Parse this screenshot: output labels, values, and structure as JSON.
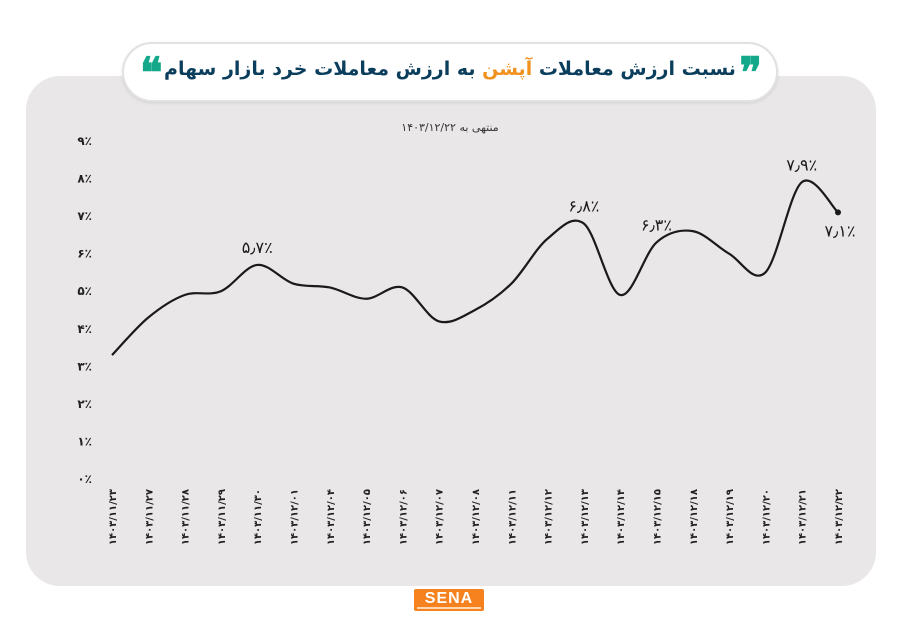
{
  "header": {
    "title_part1": "نسبت ارزش معاملات",
    "title_part2": "آپشن",
    "title_part3": "به ارزش معاملات خرد بازار سهام",
    "quote_right": "❞",
    "quote_left": "❝",
    "accent_color": "#13a88a",
    "highlight_color": "#f19220"
  },
  "subtitle": "منتهی به ۱۴۰۳/۱۲/۲۲",
  "logo": {
    "text": "SENA",
    "color": "#f5821f"
  },
  "chart_data": {
    "type": "line",
    "title": "نسبت ارزش معاملات آپشن به ارزش معاملات خرد بازار سهام",
    "ylim": [
      0,
      9
    ],
    "yticks": [
      "۰٪",
      "۱٪",
      "۲٪",
      "۳٪",
      "۴٪",
      "۵٪",
      "۶٪",
      "۷٪",
      "۸٪",
      "۹٪"
    ],
    "categories": [
      "۱۴۰۳/۱۱/۲۳",
      "۱۴۰۳/۱۱/۲۷",
      "۱۴۰۳/۱۱/۲۸",
      "۱۴۰۳/۱۱/۲۹",
      "۱۴۰۳/۱۱/۳۰",
      "۱۴۰۳/۱۲/۰۱",
      "۱۴۰۳/۱۲/۰۴",
      "۱۴۰۳/۱۲/۰۵",
      "۱۴۰۳/۱۲/۰۶",
      "۱۴۰۳/۱۲/۰۷",
      "۱۴۰۳/۱۲/۰۸",
      "۱۴۰۳/۱۲/۱۱",
      "۱۴۰۳/۱۲/۱۲",
      "۱۴۰۳/۱۲/۱۳",
      "۱۴۰۳/۱۲/۱۴",
      "۱۴۰۳/۱۲/۱۵",
      "۱۴۰۳/۱۲/۱۸",
      "۱۴۰۳/۱۲/۱۹",
      "۱۴۰۳/۱۲/۲۰",
      "۱۴۰۳/۱۲/۲۱",
      "۱۴۰۳/۱۲/۲۲"
    ],
    "values": [
      3.3,
      4.3,
      4.9,
      5.0,
      5.7,
      5.2,
      5.1,
      4.8,
      5.1,
      4.2,
      4.5,
      5.2,
      6.4,
      6.8,
      4.9,
      6.3,
      6.6,
      6.0,
      5.5,
      7.9,
      7.1
    ],
    "data_labels": [
      {
        "index": 4,
        "text": "۵٫۷٪"
      },
      {
        "index": 13,
        "text": "۶٫۸٪"
      },
      {
        "index": 15,
        "text": "۶٫۳٪"
      },
      {
        "index": 19,
        "text": "۷٫۹٪"
      },
      {
        "index": 20,
        "text": "۷٫۱٪"
      }
    ],
    "line_color": "#1a1a1a",
    "grid": false,
    "legend": "none"
  }
}
